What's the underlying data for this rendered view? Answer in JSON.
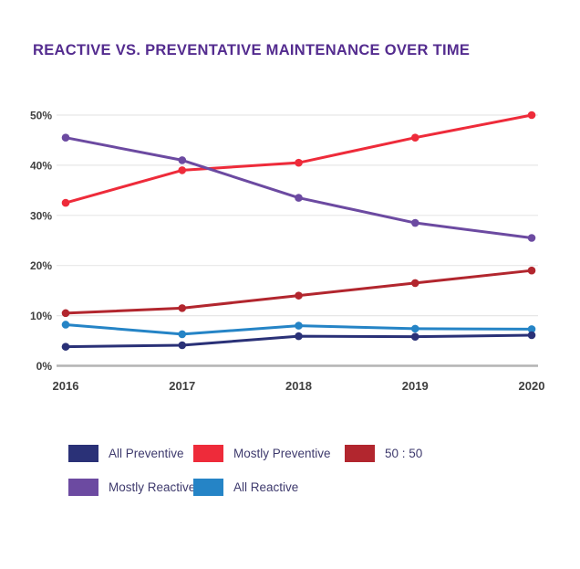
{
  "title": "REACTIVE VS. PREVENTATIVE MAINTENANCE OVER TIME",
  "colors": {
    "title": "#542c8f",
    "axis_text": "#3f3f3f",
    "gridline": "#e7e7e7",
    "baseline": "#b3b3b3",
    "legend_text": "#3e3a6d"
  },
  "chart_data": {
    "type": "line",
    "x": [
      "2016",
      "2017",
      "2018",
      "2019",
      "2020"
    ],
    "series": [
      {
        "name": "Mostly Preventive",
        "color": "#ee2b3a",
        "values": [
          32.5,
          39,
          40.5,
          45.5,
          50
        ]
      },
      {
        "name": "Mostly Reactive",
        "color": "#6c4aa1",
        "values": [
          45.5,
          41,
          33.5,
          28.5,
          25.5
        ]
      },
      {
        "name": "50 : 50",
        "color": "#b2262e",
        "values": [
          10.5,
          11.5,
          14,
          16.5,
          19
        ]
      },
      {
        "name": "All Reactive",
        "color": "#2584c6",
        "values": [
          8.2,
          6.3,
          8,
          7.4,
          7.3
        ]
      },
      {
        "name": "All Preventive",
        "color": "#2a3177",
        "values": [
          3.8,
          4.1,
          5.9,
          5.8,
          6.1
        ]
      }
    ],
    "y_ticks": [
      "0%",
      "10%",
      "20%",
      "30%",
      "40%",
      "50%"
    ],
    "ylim": [
      0,
      50
    ],
    "grid": true,
    "legend_position": "bottom"
  },
  "legend": {
    "rows": [
      [
        {
          "label": "All Preventive",
          "color": "#2a3177"
        },
        {
          "label": "Mostly Preventive",
          "color": "#ee2b3a"
        },
        {
          "label": "50 : 50",
          "color": "#b2262e"
        }
      ],
      [
        {
          "label": "Mostly Reactive",
          "color": "#6c4aa1"
        },
        {
          "label": "All Reactive",
          "color": "#2584c6"
        }
      ]
    ]
  }
}
